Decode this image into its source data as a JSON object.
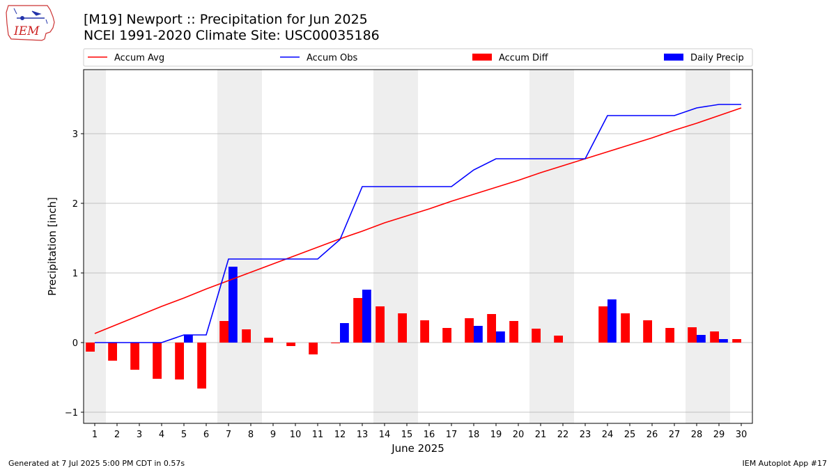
{
  "header": {
    "title_line1": "[M19] Newport :: Precipitation for Jun 2025",
    "title_line2": "NCEI 1991-2020 Climate Site: USC00035186"
  },
  "logo": {
    "text": "IEM"
  },
  "footer": {
    "generated": "Generated at 7 Jul 2025 5:00 PM CDT in 0.57s",
    "app": "IEM Autoplot App #17"
  },
  "colors": {
    "accum_avg": "#ff0000",
    "accum_obs": "#0000ff",
    "accum_diff": "#ff0000",
    "daily_precip": "#0000ff",
    "weekend_shade": "#eeeeee",
    "grid": "#b0b0b0"
  },
  "chart_data": {
    "type": "bar",
    "xlabel": "June 2025",
    "ylabel": "Precipitation [inch]",
    "xlim": [
      0.5,
      30.5
    ],
    "ylim": [
      -1.16,
      3.92
    ],
    "yticks": [
      -1,
      0,
      1,
      2,
      3
    ],
    "grid": "horizontal",
    "legend_position": "top",
    "days": [
      1,
      2,
      3,
      4,
      5,
      6,
      7,
      8,
      9,
      10,
      11,
      12,
      13,
      14,
      15,
      16,
      17,
      18,
      19,
      20,
      21,
      22,
      23,
      24,
      25,
      26,
      27,
      28,
      29,
      30
    ],
    "weekend_shaded_days": [
      1,
      7,
      8,
      14,
      15,
      21,
      22,
      28,
      29
    ],
    "series": [
      {
        "name": "Accum Avg",
        "kind": "line",
        "values": [
          0.13,
          0.26,
          0.39,
          0.52,
          0.64,
          0.77,
          0.89,
          1.01,
          1.13,
          1.25,
          1.37,
          1.49,
          1.6,
          1.72,
          1.82,
          1.92,
          2.03,
          2.13,
          2.23,
          2.33,
          2.44,
          2.54,
          2.64,
          2.74,
          2.84,
          2.94,
          3.05,
          3.15,
          3.26,
          3.37
        ]
      },
      {
        "name": "Accum Obs",
        "kind": "line",
        "values": [
          0,
          0,
          0,
          0,
          0.11,
          0.11,
          1.2,
          1.2,
          1.2,
          1.2,
          1.2,
          1.48,
          2.24,
          2.24,
          2.24,
          2.24,
          2.24,
          2.48,
          2.64,
          2.64,
          2.64,
          2.64,
          2.64,
          3.26,
          3.26,
          3.26,
          3.26,
          3.37,
          3.42,
          3.42
        ]
      },
      {
        "name": "Accum Diff",
        "kind": "bar",
        "values": [
          -0.13,
          -0.26,
          -0.39,
          -0.52,
          -0.53,
          -0.66,
          0.31,
          0.19,
          0.07,
          -0.05,
          -0.17,
          -0.01,
          0.64,
          0.52,
          0.42,
          0.32,
          0.21,
          0.35,
          0.41,
          0.31,
          0.2,
          0.1,
          0,
          0.52,
          0.42,
          0.32,
          0.21,
          0.22,
          0.16,
          0.05
        ]
      },
      {
        "name": "Daily Precip",
        "kind": "bar",
        "values": [
          0,
          0,
          0,
          0,
          0.11,
          0,
          1.09,
          0,
          0,
          0,
          0,
          0.28,
          0.76,
          0,
          0,
          0,
          0,
          0.24,
          0.16,
          0,
          0,
          0,
          0,
          0.62,
          0,
          0,
          0,
          0.11,
          0.05,
          0
        ]
      }
    ]
  }
}
